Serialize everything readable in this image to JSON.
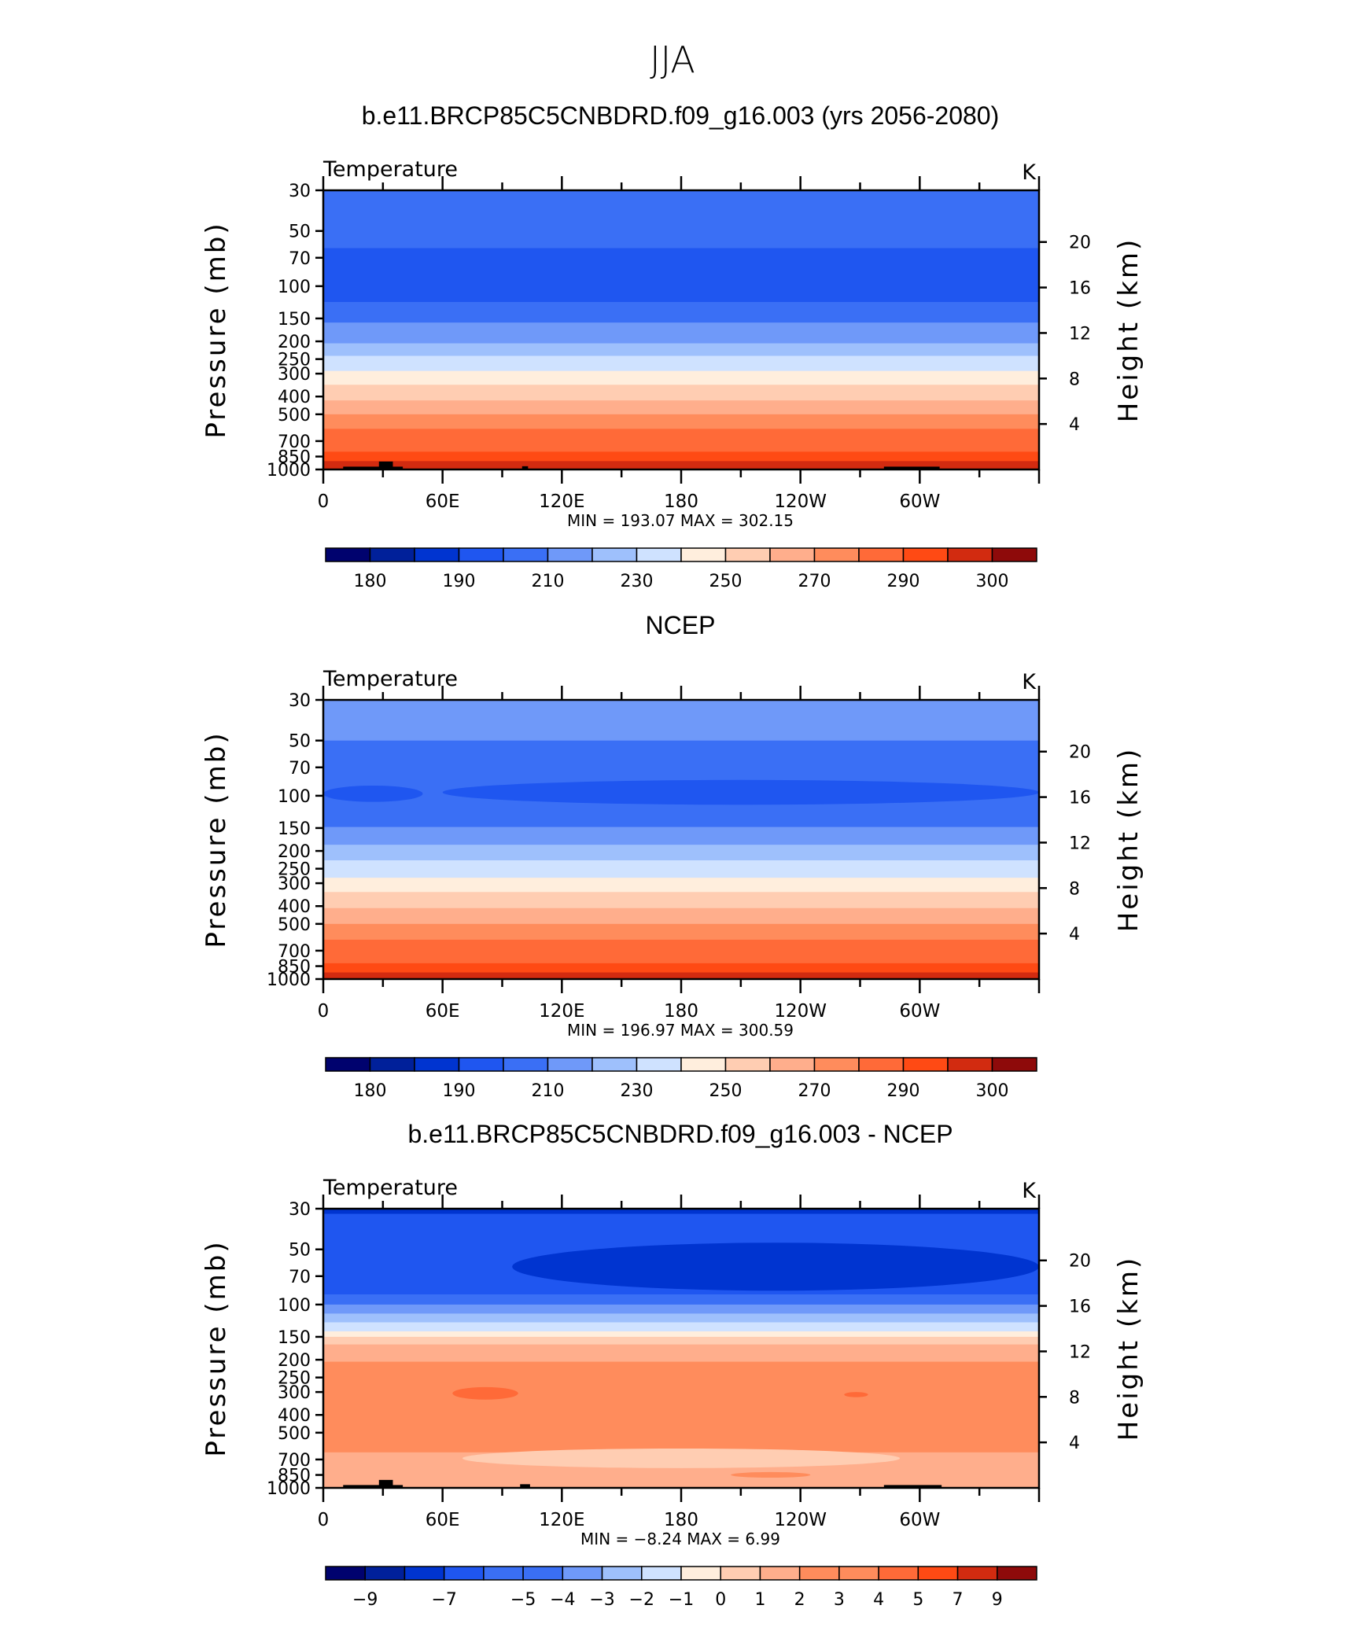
{
  "figure_title": "JJA",
  "panel_titles": [
    "b.e11.BRCP85C5CNBDRD.f09_g16.003 (yrs 2056-2080)",
    "NCEP",
    "b.e11.BRCP85C5CNBDRD.f09_g16.003 - NCEP"
  ],
  "colors": {
    "palette": [
      "#00026e",
      "#00209a",
      "#0034d0",
      "#1f56f0",
      "#3a6ff5",
      "#6f99f9",
      "#9ec0fc",
      "#cfe2ff",
      "#ffeedd",
      "#ffcdb2",
      "#ffae8c",
      "#ff8c5c",
      "#ff6a38",
      "#ff4a14",
      "#d22b10",
      "#8e0a0a"
    ],
    "land": "#000000"
  },
  "chart_data": [
    {
      "type": "heatmap",
      "variable_label": "Temperature",
      "units": "K",
      "xlabel": "",
      "ylabel": "Pressure (mb)",
      "ylabel_right": "Height (km)",
      "x_ticks": [
        "0",
        "60E",
        "120E",
        "180",
        "120W",
        "60W"
      ],
      "x_tick_values": [
        0,
        60,
        120,
        180,
        240,
        300
      ],
      "xlim": [
        0,
        360
      ],
      "y_ticks": [
        "30",
        "50",
        "70",
        "100",
        "150",
        "200",
        "250",
        "300",
        "400",
        "500",
        "700",
        "850",
        "1000"
      ],
      "y_tick_values": [
        30,
        50,
        70,
        100,
        150,
        200,
        250,
        300,
        400,
        500,
        700,
        850,
        1000
      ],
      "ylim": [
        1000,
        30
      ],
      "y_scale": "log",
      "y_right_ticks": [
        "20",
        "16",
        "12",
        "8",
        "4"
      ],
      "y_right_values": [
        20,
        16,
        12,
        8,
        4
      ],
      "stats_text": "MIN =  193.07   MAX =  302.15",
      "min": 193.07,
      "max": 302.15,
      "levels": [
        180,
        185,
        190,
        200,
        210,
        220,
        230,
        240,
        250,
        260,
        270,
        280,
        290,
        295,
        300
      ],
      "colorbar_labels": [
        "180",
        "190",
        "210",
        "230",
        "250",
        "270",
        "290",
        "300"
      ],
      "colorbar_label_levels": [
        180,
        190,
        210,
        230,
        250,
        270,
        290,
        300
      ],
      "bands": [
        {
          "p_top": 30,
          "p_bottom": 62,
          "value": 205
        },
        {
          "p_top": 62,
          "p_bottom": 122,
          "value": 195
        },
        {
          "p_top": 122,
          "p_bottom": 158,
          "value": 205
        },
        {
          "p_top": 158,
          "p_bottom": 205,
          "value": 215
        },
        {
          "p_top": 205,
          "p_bottom": 240,
          "value": 225
        },
        {
          "p_top": 240,
          "p_bottom": 290,
          "value": 235
        },
        {
          "p_top": 290,
          "p_bottom": 345,
          "value": 245
        },
        {
          "p_top": 345,
          "p_bottom": 420,
          "value": 255
        },
        {
          "p_top": 420,
          "p_bottom": 500,
          "value": 265
        },
        {
          "p_top": 500,
          "p_bottom": 600,
          "value": 275
        },
        {
          "p_top": 600,
          "p_bottom": 800,
          "value": 285
        },
        {
          "p_top": 800,
          "p_bottom": 900,
          "value": 292
        },
        {
          "p_top": 900,
          "p_bottom": 1000,
          "value": 297
        }
      ],
      "land": [
        {
          "lon_start": 10,
          "lon_end": 40,
          "p_top": 965
        },
        {
          "lon_start": 28,
          "lon_end": 35,
          "p_top": 905
        },
        {
          "lon_start": 100,
          "lon_end": 103,
          "p_top": 960
        },
        {
          "lon_start": 282,
          "lon_end": 310,
          "p_top": 965
        }
      ]
    },
    {
      "type": "heatmap",
      "variable_label": "Temperature",
      "units": "K",
      "xlabel": "",
      "ylabel": "Pressure (mb)",
      "ylabel_right": "Height (km)",
      "x_ticks": [
        "0",
        "60E",
        "120E",
        "180",
        "120W",
        "60W"
      ],
      "x_tick_values": [
        0,
        60,
        120,
        180,
        240,
        300
      ],
      "xlim": [
        0,
        360
      ],
      "y_ticks": [
        "30",
        "50",
        "70",
        "100",
        "150",
        "200",
        "250",
        "300",
        "400",
        "500",
        "700",
        "850",
        "1000"
      ],
      "y_tick_values": [
        30,
        50,
        70,
        100,
        150,
        200,
        250,
        300,
        400,
        500,
        700,
        850,
        1000
      ],
      "ylim": [
        1000,
        30
      ],
      "y_scale": "log",
      "y_right_ticks": [
        "20",
        "16",
        "12",
        "8",
        "4"
      ],
      "y_right_values": [
        20,
        16,
        12,
        8,
        4
      ],
      "stats_text": "MIN =  196.97   MAX =  300.59",
      "min": 196.97,
      "max": 300.59,
      "levels": [
        180,
        185,
        190,
        200,
        210,
        220,
        230,
        240,
        250,
        260,
        270,
        280,
        290,
        295,
        300
      ],
      "colorbar_labels": [
        "180",
        "190",
        "210",
        "230",
        "250",
        "270",
        "290",
        "300"
      ],
      "colorbar_label_levels": [
        180,
        190,
        210,
        230,
        250,
        270,
        290,
        300
      ],
      "bands": [
        {
          "p_top": 30,
          "p_bottom": 50,
          "value": 215
        },
        {
          "p_top": 50,
          "p_bottom": 148,
          "value": 205
        },
        {
          "p_top": 148,
          "p_bottom": 185,
          "value": 215
        },
        {
          "p_top": 185,
          "p_bottom": 225,
          "value": 225
        },
        {
          "p_top": 225,
          "p_bottom": 280,
          "value": 235
        },
        {
          "p_top": 280,
          "p_bottom": 335,
          "value": 245
        },
        {
          "p_top": 335,
          "p_bottom": 410,
          "value": 255
        },
        {
          "p_top": 410,
          "p_bottom": 500,
          "value": 265
        },
        {
          "p_top": 500,
          "p_bottom": 610,
          "value": 275
        },
        {
          "p_top": 610,
          "p_bottom": 820,
          "value": 285
        },
        {
          "p_top": 820,
          "p_bottom": 920,
          "value": 292
        },
        {
          "p_top": 920,
          "p_bottom": 1000,
          "value": 297
        }
      ],
      "blobs": [
        {
          "lon_start": 0,
          "lon_end": 50,
          "p_top": 88,
          "p_bottom": 108,
          "value": 198
        },
        {
          "lon_start": 60,
          "lon_end": 360,
          "p_top": 82,
          "p_bottom": 112,
          "value": 198
        }
      ],
      "land": []
    },
    {
      "type": "heatmap",
      "variable_label": "Temperature",
      "units": "K",
      "xlabel": "",
      "ylabel": "Pressure (mb)",
      "ylabel_right": "Height (km)",
      "x_ticks": [
        "0",
        "60E",
        "120E",
        "180",
        "120W",
        "60W"
      ],
      "x_tick_values": [
        0,
        60,
        120,
        180,
        240,
        300
      ],
      "xlim": [
        0,
        360
      ],
      "y_ticks": [
        "30",
        "50",
        "70",
        "100",
        "150",
        "200",
        "250",
        "300",
        "400",
        "500",
        "700",
        "850",
        "1000"
      ],
      "y_tick_values": [
        30,
        50,
        70,
        100,
        150,
        200,
        250,
        300,
        400,
        500,
        700,
        850,
        1000
      ],
      "ylim": [
        1000,
        30
      ],
      "y_scale": "log",
      "y_right_ticks": [
        "20",
        "16",
        "12",
        "8",
        "4"
      ],
      "y_right_values": [
        20,
        16,
        12,
        8,
        4
      ],
      "stats_text": "MIN =    −8.24   MAX =     6.99",
      "min": -8.24,
      "max": 6.99,
      "levels": [
        -9,
        -8,
        -7,
        -6,
        -5,
        -4,
        -3,
        -2,
        -1,
        0,
        1,
        2,
        3,
        4,
        5,
        7,
        9
      ],
      "colorbar_labels": [
        "−9",
        "−7",
        "−5",
        "−4",
        "−3",
        "−2",
        "−1",
        "0",
        "1",
        "2",
        "3",
        "4",
        "5",
        "7",
        "9"
      ],
      "colorbar_label_levels": [
        -9,
        -7,
        -5,
        -4,
        -3,
        -2,
        -1,
        0,
        1,
        2,
        3,
        4,
        5,
        7,
        9
      ],
      "bands": [
        {
          "p_top": 30,
          "p_bottom": 32,
          "value": -8
        },
        {
          "p_top": 32,
          "p_bottom": 88,
          "value": -6.5
        },
        {
          "p_top": 88,
          "p_bottom": 100,
          "value": -4.5
        },
        {
          "p_top": 100,
          "p_bottom": 112,
          "value": -3.5
        },
        {
          "p_top": 112,
          "p_bottom": 125,
          "value": -2.5
        },
        {
          "p_top": 125,
          "p_bottom": 140,
          "value": -1.5
        },
        {
          "p_top": 140,
          "p_bottom": 150,
          "value": -0.5
        },
        {
          "p_top": 150,
          "p_bottom": 165,
          "value": 0.5
        },
        {
          "p_top": 165,
          "p_bottom": 205,
          "value": 1.5
        },
        {
          "p_top": 205,
          "p_bottom": 240,
          "value": 2.5
        },
        {
          "p_top": 240,
          "p_bottom": 540,
          "value": 3.5
        },
        {
          "p_top": 540,
          "p_bottom": 640,
          "value": 2.5
        },
        {
          "p_top": 640,
          "p_bottom": 1000,
          "value": 1.5
        }
      ],
      "blobs": [
        {
          "lon_start": 95,
          "lon_end": 360,
          "p_top": 46,
          "p_bottom": 84,
          "value": -7.5
        },
        {
          "lon_start": 65,
          "lon_end": 98,
          "p_top": 282,
          "p_bottom": 330,
          "value": 4.5
        },
        {
          "lon_start": 262,
          "lon_end": 274,
          "p_top": 300,
          "p_bottom": 320,
          "value": 4.5
        },
        {
          "lon_start": 70,
          "lon_end": 290,
          "p_top": 610,
          "p_bottom": 780,
          "value": 0.5
        },
        {
          "lon_start": 205,
          "lon_end": 245,
          "p_top": 820,
          "p_bottom": 880,
          "value": 3.5
        }
      ],
      "land": [
        {
          "lon_start": 10,
          "lon_end": 40,
          "p_top": 965
        },
        {
          "lon_start": 28,
          "lon_end": 35,
          "p_top": 905
        },
        {
          "lon_start": 99,
          "lon_end": 104,
          "p_top": 955
        },
        {
          "lon_start": 282,
          "lon_end": 311,
          "p_top": 965
        }
      ]
    }
  ]
}
